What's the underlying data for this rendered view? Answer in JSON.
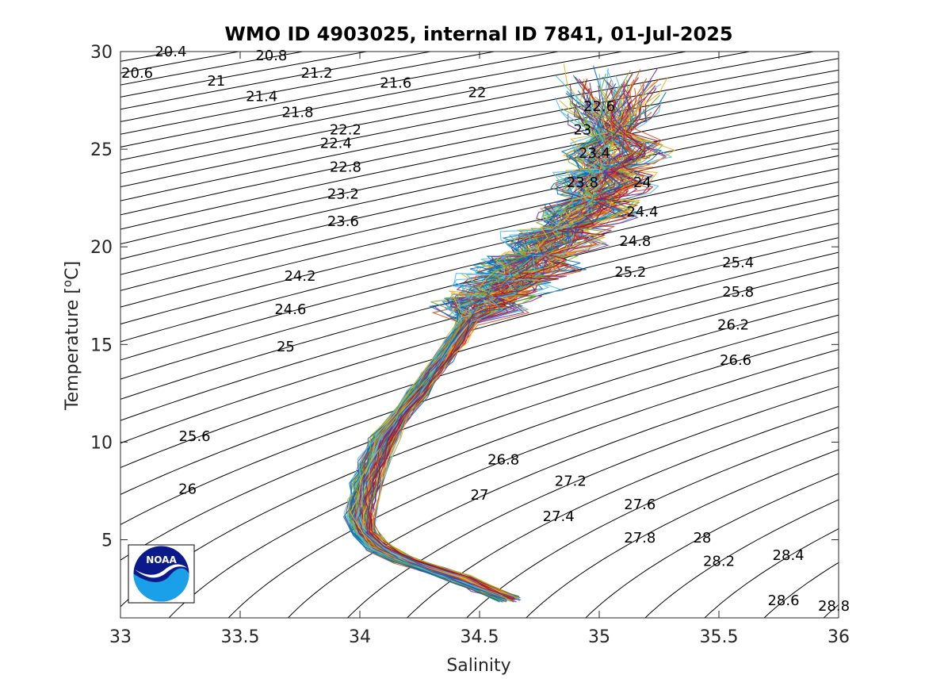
{
  "chart_data": {
    "type": "line",
    "title": "WMO ID 4903025, internal ID 7841, 01-Jul-2025",
    "xlabel": "Salinity",
    "ylabel_main": "Temperature [",
    "ylabel_sup": "o",
    "ylabel_end": "C]",
    "xlim": [
      33,
      36
    ],
    "ylim": [
      1,
      30
    ],
    "xticks": [
      {
        "value": 33,
        "label": "33"
      },
      {
        "value": 33.5,
        "label": "33.5"
      },
      {
        "value": 34,
        "label": "34"
      },
      {
        "value": 34.5,
        "label": "34.5"
      },
      {
        "value": 35,
        "label": "35"
      },
      {
        "value": 35.5,
        "label": "35.5"
      },
      {
        "value": 36,
        "label": "36"
      }
    ],
    "yticks": [
      {
        "value": 5,
        "label": "5"
      },
      {
        "value": 10,
        "label": "10"
      },
      {
        "value": 15,
        "label": "15"
      },
      {
        "value": 20,
        "label": "20"
      },
      {
        "value": 25,
        "label": "25"
      },
      {
        "value": 30,
        "label": "30"
      }
    ],
    "isopycnals": {
      "from": 20.4,
      "to": 28.8,
      "step": 0.2,
      "units": "sigma-theta (kg/m^3 - 1000)"
    },
    "isopycnal_labels": [
      {
        "text": "20.4",
        "s": 33.21,
        "t": 30.0
      },
      {
        "text": "20.6",
        "s": 33.07,
        "t": 28.9
      },
      {
        "text": "20.8",
        "s": 33.63,
        "t": 29.8
      },
      {
        "text": "21",
        "s": 33.4,
        "t": 28.5
      },
      {
        "text": "21.2",
        "s": 33.82,
        "t": 28.9
      },
      {
        "text": "21.4",
        "s": 33.59,
        "t": 27.7
      },
      {
        "text": "21.6",
        "s": 34.15,
        "t": 28.4
      },
      {
        "text": "21.8",
        "s": 33.74,
        "t": 26.9
      },
      {
        "text": "22",
        "s": 34.49,
        "t": 27.9
      },
      {
        "text": "22.2",
        "s": 33.94,
        "t": 26.0
      },
      {
        "text": "22.4",
        "s": 33.9,
        "t": 25.3
      },
      {
        "text": "22.6",
        "s": 35.0,
        "t": 27.2
      },
      {
        "text": "22.8",
        "s": 33.94,
        "t": 24.1
      },
      {
        "text": "23",
        "s": 34.93,
        "t": 26.0
      },
      {
        "text": "23.2",
        "s": 33.93,
        "t": 22.7
      },
      {
        "text": "23.4",
        "s": 34.98,
        "t": 24.8
      },
      {
        "text": "23.6",
        "s": 33.93,
        "t": 21.3
      },
      {
        "text": "23.8",
        "s": 34.93,
        "t": 23.3
      },
      {
        "text": "24",
        "s": 35.18,
        "t": 23.3
      },
      {
        "text": "24.2",
        "s": 33.75,
        "t": 18.5
      },
      {
        "text": "24.4",
        "s": 35.18,
        "t": 21.8
      },
      {
        "text": "24.6",
        "s": 33.71,
        "t": 16.8
      },
      {
        "text": "24.8",
        "s": 35.15,
        "t": 20.3
      },
      {
        "text": "25",
        "s": 33.69,
        "t": 14.9
      },
      {
        "text": "25.2",
        "s": 35.13,
        "t": 18.7
      },
      {
        "text": "25.4",
        "s": 35.58,
        "t": 19.2
      },
      {
        "text": "25.6",
        "s": 33.31,
        "t": 10.3
      },
      {
        "text": "25.8",
        "s": 35.58,
        "t": 17.7
      },
      {
        "text": "26",
        "s": 33.28,
        "t": 7.6
      },
      {
        "text": "26.2",
        "s": 35.56,
        "t": 16.0
      },
      {
        "text": "26.6",
        "s": 35.57,
        "t": 14.2
      },
      {
        "text": "26.8",
        "s": 34.6,
        "t": 9.1
      },
      {
        "text": "27",
        "s": 34.5,
        "t": 7.3
      },
      {
        "text": "27.2",
        "s": 34.88,
        "t": 8.0
      },
      {
        "text": "27.4",
        "s": 34.83,
        "t": 6.2
      },
      {
        "text": "27.6",
        "s": 35.17,
        "t": 6.8
      },
      {
        "text": "27.8",
        "s": 35.17,
        "t": 5.1
      },
      {
        "text": "28",
        "s": 35.43,
        "t": 5.1
      },
      {
        "text": "28.2",
        "s": 35.5,
        "t": 3.9
      },
      {
        "text": "28.4",
        "s": 35.79,
        "t": 4.2
      },
      {
        "text": "28.6",
        "s": 35.77,
        "t": 1.9
      },
      {
        "text": "28.8",
        "s": 35.98,
        "t": 1.6
      }
    ],
    "profile_count": 120,
    "mean_profile": [
      [
        35.05,
        26.5
      ],
      [
        35.06,
        25.0
      ],
      [
        35.02,
        23.5
      ],
      [
        34.95,
        22.0
      ],
      [
        34.82,
        20.5
      ],
      [
        34.72,
        19.2
      ],
      [
        34.62,
        18.2
      ],
      [
        34.52,
        17.2
      ],
      [
        34.45,
        16.2
      ],
      [
        34.4,
        15.2
      ],
      [
        34.35,
        14.3
      ],
      [
        34.3,
        13.5
      ],
      [
        34.24,
        12.5
      ],
      [
        34.17,
        11.4
      ],
      [
        34.1,
        10.2
      ],
      [
        34.06,
        9.0
      ],
      [
        34.03,
        8.0
      ],
      [
        34.01,
        7.0
      ],
      [
        34.0,
        6.2
      ],
      [
        34.02,
        5.4
      ],
      [
        34.08,
        4.6
      ],
      [
        34.18,
        4.0
      ],
      [
        34.3,
        3.5
      ],
      [
        34.42,
        3.0
      ],
      [
        34.52,
        2.5
      ],
      [
        34.62,
        2.0
      ]
    ],
    "series_colors": [
      "#0072BD",
      "#D95319",
      "#EDB120",
      "#7E2F8E",
      "#77AC30",
      "#4DBEEE",
      "#A2142F"
    ],
    "logo": {
      "text": "NOAA",
      "colors": {
        "navy": "#0b1a8a",
        "sky": "#1aa0e8"
      }
    }
  }
}
